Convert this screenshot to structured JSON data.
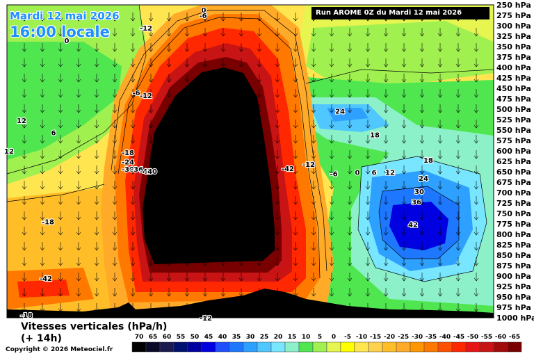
{
  "header": {
    "date": "Mardi 12 mai 2026",
    "local_time": "16:00 locale",
    "run": "Run AROME 0Z du Mardi 12 mai 2026"
  },
  "footer": {
    "variable": "Vitesses verticales (hPa/h)",
    "lead_time": "(+ 14h)",
    "copyright": "Copyright © 2026 Meteociel.fr"
  },
  "chart_data": {
    "type": "heatmap",
    "title": "Vitesses verticales (hPa/h)",
    "y_axis": {
      "unit": "hPa",
      "ticks": [
        "250 hPa",
        "275 hPa",
        "300 hPa",
        "325 hPa",
        "350 hPa",
        "375 hPa",
        "400 hPa",
        "425 hPa",
        "450 hPa",
        "475 hPa",
        "500 hPa",
        "525 hPa",
        "550 hPa",
        "575 hPa",
        "600 hPa",
        "625 hPa",
        "650 hPa",
        "675 hPa",
        "700 hPa",
        "725 hPa",
        "750 hPa",
        "775 hPa",
        "800 hPa",
        "825 hPa",
        "850 hPa",
        "875 hPa",
        "900 hPa",
        "925 hPa",
        "950 hPa",
        "975 hPa",
        "1000 hPa"
      ],
      "range": [
        250,
        1000
      ]
    },
    "color_scale": {
      "labels": [
        "70",
        "65",
        "60",
        "55",
        "50",
        "45",
        "40",
        "35",
        "30",
        "25",
        "20",
        "15",
        "10",
        "5",
        "0",
        "-5",
        "-10",
        "-15",
        "-20",
        "-25",
        "-30",
        "-35",
        "-40",
        "-45",
        "-50",
        "-55",
        "-60",
        "-65"
      ],
      "colors": [
        "#000000",
        "#0a0a28",
        "#1a1a4e",
        "#00106e",
        "#0000a0",
        "#0000e0",
        "#1e50ff",
        "#1e78ff",
        "#2ea0ff",
        "#50c8ff",
        "#78e6ff",
        "#8cf0c8",
        "#50e650",
        "#a0f050",
        "#e6f550",
        "#ffff00",
        "#ffe650",
        "#ffd24e",
        "#ffbe28",
        "#ffaa28",
        "#ff9600",
        "#ff7800",
        "#ff5000",
        "#ff2800",
        "#e61414",
        "#c81414",
        "#a00a0a",
        "#780000"
      ]
    },
    "contour_labels": [
      {
        "value": "0",
        "level_hPa": 262
      },
      {
        "value": "-6",
        "level_hPa": 275
      },
      {
        "value": "-12",
        "level_hPa": 305
      },
      {
        "value": "0",
        "level_hPa": 335
      },
      {
        "value": "-6",
        "level_hPa": 460
      },
      {
        "value": "-12",
        "level_hPa": 467
      },
      {
        "value": "12",
        "level_hPa": 527
      },
      {
        "value": "6",
        "level_hPa": 556
      },
      {
        "value": "12",
        "level_hPa": 600
      },
      {
        "value": "-18",
        "level_hPa": 603
      },
      {
        "value": "-24",
        "level_hPa": 626
      },
      {
        "value": "-30",
        "level_hPa": 643
      },
      {
        "value": "-36",
        "level_hPa": 643
      },
      {
        "value": "-42",
        "level_hPa": 648
      },
      {
        "value": "-40",
        "level_hPa": 648
      },
      {
        "value": "24",
        "level_hPa": 504
      },
      {
        "value": "18",
        "level_hPa": 561
      },
      {
        "value": "18",
        "level_hPa": 622
      },
      {
        "value": "-12",
        "level_hPa": 632
      },
      {
        "value": "-42",
        "level_hPa": 642
      },
      {
        "value": "-6",
        "level_hPa": 654
      },
      {
        "value": "0",
        "level_hPa": 651
      },
      {
        "value": "6",
        "level_hPa": 651
      },
      {
        "value": "12",
        "level_hPa": 651
      },
      {
        "value": "24",
        "level_hPa": 665
      },
      {
        "value": "30",
        "level_hPa": 697
      },
      {
        "value": "36",
        "level_hPa": 722
      },
      {
        "value": "42",
        "level_hPa": 776
      },
      {
        "value": "-18",
        "level_hPa": 769
      },
      {
        "value": "-42",
        "level_hPa": 905
      },
      {
        "value": "-18",
        "level_hPa": 993
      },
      {
        "value": "-12",
        "level_hPa": 1000
      }
    ],
    "legend": "bottom"
  }
}
